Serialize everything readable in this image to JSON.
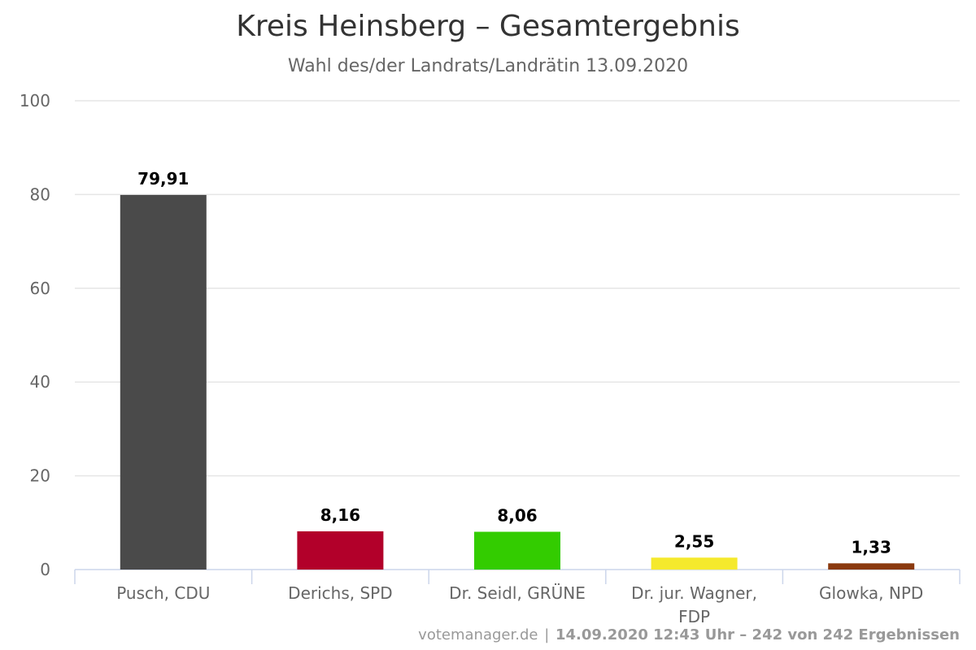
{
  "chart_data": {
    "type": "bar",
    "title": "Kreis Heinsberg – Gesamtergebnis",
    "subtitle": "Wahl des/der Landrats/Landrätin 13.09.2020",
    "xlabel": "",
    "ylabel": "",
    "ylim": [
      0,
      100
    ],
    "yticks": [
      "0",
      "20",
      "40",
      "60",
      "80",
      "100"
    ],
    "grid": true,
    "legend": "none",
    "categories": [
      {
        "lines": [
          "Pusch, CDU"
        ]
      },
      {
        "lines": [
          "Derichs, SPD"
        ]
      },
      {
        "lines": [
          "Dr. Seidl, GRÜNE"
        ]
      },
      {
        "lines": [
          "Dr. jur. Wagner,",
          "FDP"
        ]
      },
      {
        "lines": [
          "Glowka, NPD"
        ]
      }
    ],
    "values": [
      79.91,
      8.16,
      8.06,
      2.55,
      1.33
    ],
    "value_labels": [
      "79,91",
      "8,16",
      "8,06",
      "2,55",
      "1,33"
    ],
    "colors": [
      "#4a4a4a",
      "#b2002a",
      "#33cc00",
      "#f5e92c",
      "#8b3a0f"
    ]
  },
  "credits": {
    "source": "votemanager.de",
    "separator": "|",
    "details": "14.09.2020 12:43 Uhr – 242 von 242 Ergebnissen"
  }
}
